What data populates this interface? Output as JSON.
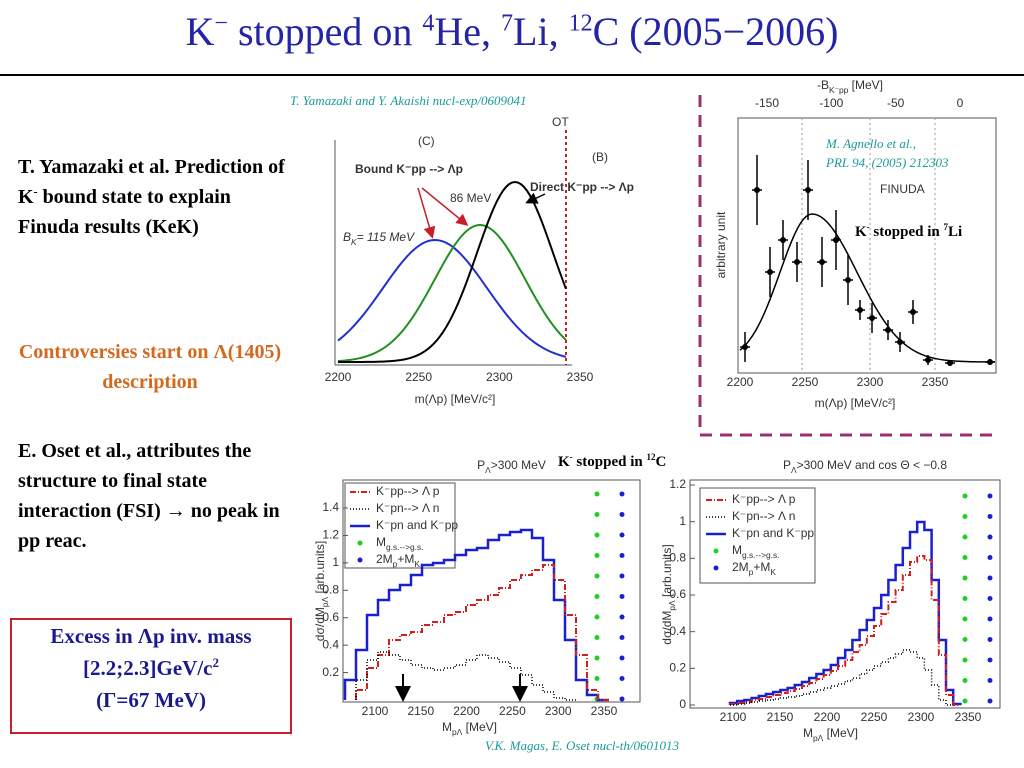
{
  "title": {
    "k": "K",
    "minus": "−",
    "text1": " stopped on ",
    "he_mass": "4",
    "he": "He, ",
    "li_mass": "7",
    "li": "Li, ",
    "c_mass": "12",
    "c": "C (2005−2006)"
  },
  "left": {
    "prediction": {
      "a": "T. Yamazaki et al. Prediction of K",
      "sup": "-",
      "b": " bound state to explain Finuda results (KeK)"
    },
    "controversy": "Controversies start on Λ(1405) description",
    "oset": "E. Oset et al., attributes the structure to final state interaction (FSI) → no peak in pp reac.",
    "excess": {
      "a": "Excess in Λp inv. mass [2.2;2.3]GeV/c",
      "sup": "2",
      "b": "(Γ=67 MeV)"
    }
  },
  "citations": {
    "yamazaki": "T. Yamazaki and Y. Akaishi  nucl-exp/0609041",
    "agnello": [
      "M. Agnello et al.,",
      "PRL 94, (2005) 212303"
    ],
    "magas": "V.K. Magas, E. Oset nucl-th/0601013"
  },
  "labels": {
    "li": {
      "a": "K",
      "sup1": "-",
      "b": " stopped in ",
      "sup2": "7",
      "c": "Li"
    },
    "c12": {
      "a": "K",
      "sup1": "-",
      "b": " stopped in ",
      "sup2": "12",
      "c": "C"
    }
  },
  "plot_yamazaki": {
    "xticks": [
      "2200",
      "2250",
      "2300",
      "2350"
    ],
    "xlabel": "m(Λp) [MeV/c²]",
    "c": "(C)",
    "b": "(B)",
    "ot": "OT",
    "bound": "Bound K⁻pp --> Λp",
    "direct": "Direct K⁻pp --> Λp",
    "e86": "86 MeV",
    "bk": [
      "B",
      "K",
      "= 115 MeV"
    ]
  },
  "plot_finuda": {
    "top_ticks": [
      "-150",
      "-100",
      "-50",
      "0"
    ],
    "top_label": [
      "-B",
      "K⁻pp",
      " [MeV]"
    ],
    "xticks": [
      "2200",
      "2250",
      "2300",
      "2350"
    ],
    "xlabel": "m(Λp) [MeV/c²]",
    "ylabel": "arbitrary unit",
    "name": "FINUDA"
  },
  "plot_12c": {
    "title": [
      "P",
      "Λ",
      ">300 MeV"
    ],
    "yticks": [
      "0.2",
      "0.4",
      "0.6",
      "0.8",
      "1",
      "1.2",
      "1.4"
    ],
    "xticks": [
      "2100",
      "2150",
      "2200",
      "2250",
      "2300",
      "2350"
    ],
    "xlabel": [
      "M",
      "pΛ",
      " [MeV]"
    ],
    "ylabel": [
      "dσ/dM",
      "pΛ",
      " [arb.units]"
    ],
    "legend": [
      [
        "K⁻pp--> Λ p"
      ],
      [
        "K⁻pn--> Λ n"
      ],
      [
        "K⁻pn and K⁻pp"
      ],
      [
        "M",
        "g.s.-->g.s."
      ],
      [
        "2M",
        "p",
        "+M",
        "K"
      ]
    ]
  },
  "plot_cos": {
    "title": [
      "P",
      "Λ",
      ">300 MeV and cos Θ < −0.8"
    ],
    "yticks": [
      "0",
      "0.2",
      "0.4",
      "0.6",
      "0.8",
      "1",
      "1.2"
    ],
    "xticks": [
      "2100",
      "2150",
      "2200",
      "2250",
      "2300",
      "2350"
    ],
    "xlabel": [
      "M",
      "pΛ",
      " [MeV]"
    ],
    "ylabel": [
      "dσ/dM",
      "pΛ",
      " [arb.units]"
    ],
    "legend": [
      [
        "K⁻pp--> Λ p"
      ],
      [
        "K⁻pn--> Λ n"
      ],
      [
        "K⁻pn and K⁻pp"
      ],
      [
        "M",
        "g.s.-->g.s."
      ],
      [
        "2M",
        "p",
        "+M",
        "K"
      ]
    ]
  }
}
